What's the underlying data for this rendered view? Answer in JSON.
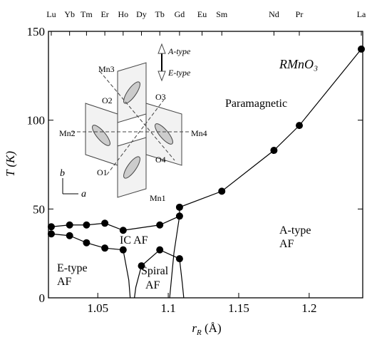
{
  "chart_data": {
    "type": "line",
    "x_label": [
      "r",
      "R",
      " (Å)"
    ],
    "y_label": "T (K)",
    "xlim": [
      1.015,
      1.238
    ],
    "ylim": [
      0,
      150
    ],
    "xticks": [
      1.05,
      1.1,
      1.15,
      1.2
    ],
    "yticks": [
      0,
      50,
      100,
      150
    ],
    "top_axis": {
      "labels": [
        "Lu",
        "Yb",
        "Tm",
        "Er",
        "Ho",
        "Dy",
        "Tb",
        "Gd",
        "Eu",
        "Sm",
        "Nd",
        "Pr",
        "La"
      ],
      "x": [
        1.017,
        1.03,
        1.042,
        1.055,
        1.068,
        1.081,
        1.094,
        1.108,
        1.124,
        1.138,
        1.175,
        1.193,
        1.237
      ]
    },
    "series": [
      {
        "color": "#000000",
        "marker": true,
        "x": [
          1.017,
          1.03,
          1.042,
          1.055,
          1.068,
          1.094,
          1.108,
          1.108,
          1.138,
          1.175,
          1.193,
          1.237
        ],
        "values": [
          40,
          41,
          41,
          42,
          38,
          41,
          46,
          51,
          60,
          83,
          97,
          140
        ]
      },
      {
        "color": "#000000",
        "marker": true,
        "x": [
          1.017,
          1.03,
          1.042,
          1.055,
          1.068
        ],
        "values": [
          36,
          35,
          31,
          28,
          27
        ]
      },
      {
        "color": "#000000",
        "marker": true,
        "x": [
          1.081,
          1.094,
          1.108
        ],
        "values": [
          18,
          27,
          22
        ]
      },
      {
        "color": "#000000",
        "marker": false,
        "x": [
          1.068,
          1.072,
          1.073
        ],
        "values": [
          27,
          10,
          0
        ]
      },
      {
        "color": "#000000",
        "marker": false,
        "x": [
          1.081,
          1.077,
          1.076
        ],
        "values": [
          18,
          6,
          0
        ]
      },
      {
        "color": "#000000",
        "marker": false,
        "x": [
          1.101,
          1.104,
          1.108
        ],
        "values": [
          0,
          25,
          46
        ]
      },
      {
        "color": "#000000",
        "marker": false,
        "x": [
          1.108,
          1.11,
          1.111
        ],
        "values": [
          22,
          8,
          0
        ]
      }
    ],
    "annotations": {
      "compound": "RMnO₃",
      "paramagnetic": "Paramagnetic",
      "a_type": [
        "A-type",
        "AF"
      ],
      "e_type": [
        "E-type",
        "AF"
      ],
      "ic": "IC AF",
      "spiral": [
        "Spiral",
        "AF"
      ]
    },
    "inset": {
      "mn1": "Mn1",
      "mn2": "Mn2",
      "mn3": "Mn3",
      "mn4": "Mn4",
      "o1": "O1",
      "o2": "O2",
      "o3": "O3",
      "o4": "O4",
      "a_type": "A-type",
      "e_type": "E-type",
      "b": "b",
      "a": "a"
    }
  }
}
